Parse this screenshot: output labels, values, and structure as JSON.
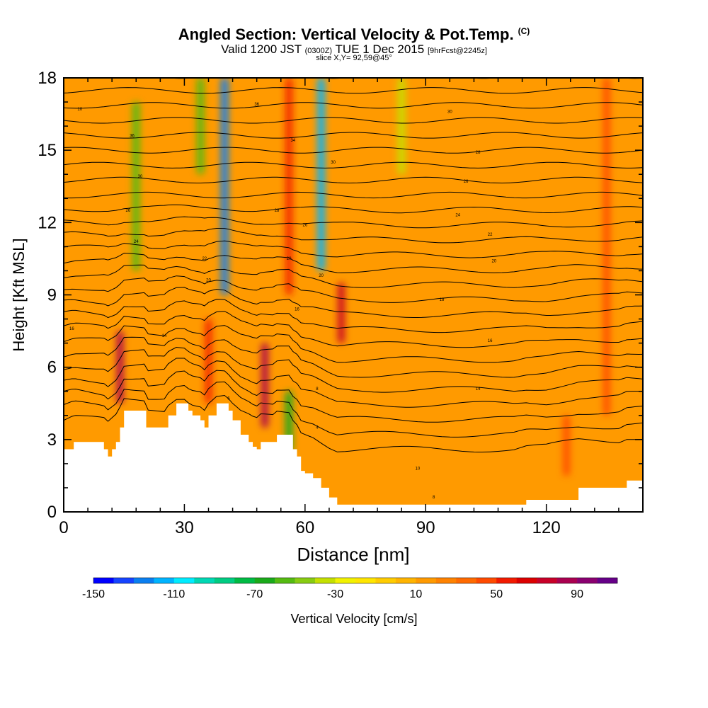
{
  "header": {
    "title": "Angled Section: Vertical Velocity & Pot.Temp.",
    "title_mark": "(C)",
    "valid_prefix": "Valid 1200 JST",
    "valid_utc": "(0300Z)",
    "valid_date": "TUE 1 Dec 2015",
    "forecast": "[9hrFcst@2245z]",
    "slice": "slice X,Y= 92,59@45°"
  },
  "chart_data": {
    "type": "heatmap",
    "xlabel": "Distance [nm]",
    "ylabel": "Height [Kft MSL]",
    "xlim": [
      0,
      144
    ],
    "ylim": [
      0,
      18
    ],
    "x_ticks": [
      0,
      30,
      60,
      90,
      120
    ],
    "y_ticks": [
      0,
      3,
      6,
      9,
      12,
      15,
      18
    ],
    "colorbar": {
      "label": "Vertical Velocity [cm/s]",
      "min": -150,
      "max": 110,
      "step": 10,
      "tick_labels": [
        -150,
        -110,
        -70,
        -30,
        10,
        50,
        90
      ],
      "colors": [
        "#0000ff",
        "#1644ff",
        "#0a7ff0",
        "#00b4ff",
        "#00ecff",
        "#00d8b4",
        "#00cc82",
        "#00bb44",
        "#1aaa1a",
        "#55bb11",
        "#88cc11",
        "#c4e000",
        "#f2f200",
        "#ffe600",
        "#ffcc00",
        "#ffb400",
        "#ff9a00",
        "#ff8200",
        "#ff6a00",
        "#ff4a00",
        "#f21a00",
        "#dc0000",
        "#c80028",
        "#aa0050",
        "#8a0070",
        "#660088"
      ]
    },
    "updraft_bands": [
      {
        "x": 14,
        "ymin": 4.5,
        "ymax": 7.5,
        "value": 85
      },
      {
        "x": 36,
        "ymin": 4.5,
        "ymax": 8.0,
        "value": 55
      },
      {
        "x": 50,
        "ymin": 3.5,
        "ymax": 7.0,
        "value": 80
      },
      {
        "x": 56,
        "ymin": 9.0,
        "ymax": 18.0,
        "value": 55
      },
      {
        "x": 69,
        "ymin": 7.0,
        "ymax": 9.5,
        "value": 75
      },
      {
        "x": 135,
        "ymin": 4.0,
        "ymax": 18.0,
        "value": 45
      },
      {
        "x": 125,
        "ymin": 1.5,
        "ymax": 4.0,
        "value": 40
      }
    ],
    "downdraft_bands": [
      {
        "x": 40,
        "ymin": 9.0,
        "ymax": 18.0,
        "value": -130
      },
      {
        "x": 64,
        "ymin": 10.0,
        "ymax": 18.0,
        "value": -120
      },
      {
        "x": 18,
        "ymin": 10.0,
        "ymax": 17.0,
        "value": -55
      },
      {
        "x": 34,
        "ymin": 14.0,
        "ymax": 18.0,
        "value": -55
      },
      {
        "x": 56,
        "ymin": 2.5,
        "ymax": 5.0,
        "value": -70
      },
      {
        "x": 84,
        "ymin": 14.0,
        "ymax": 18.0,
        "value": -40
      }
    ],
    "terrain": [
      [
        0,
        2.6
      ],
      [
        2.5,
        2.9
      ],
      [
        10,
        2.6
      ],
      [
        11,
        2.3
      ],
      [
        12,
        2.6
      ],
      [
        13,
        2.9
      ],
      [
        14,
        3.5
      ],
      [
        15,
        4.2
      ],
      [
        20,
        4.2
      ],
      [
        20.5,
        3.5
      ],
      [
        25,
        3.5
      ],
      [
        26,
        4.0
      ],
      [
        28,
        4.5
      ],
      [
        30,
        4.5
      ],
      [
        31,
        4.2
      ],
      [
        32,
        4.0
      ],
      [
        34,
        3.8
      ],
      [
        35,
        3.5
      ],
      [
        36,
        4.0
      ],
      [
        38,
        4.5
      ],
      [
        40,
        4.5
      ],
      [
        41,
        4.2
      ],
      [
        42,
        3.8
      ],
      [
        44,
        3.2
      ],
      [
        46,
        2.9
      ],
      [
        47,
        2.7
      ],
      [
        48,
        2.6
      ],
      [
        49,
        2.9
      ],
      [
        52,
        2.9
      ],
      [
        53,
        3.2
      ],
      [
        56,
        3.2
      ],
      [
        57,
        2.6
      ],
      [
        58,
        2.3
      ],
      [
        59,
        1.7
      ],
      [
        60,
        1.6
      ],
      [
        62,
        1.4
      ],
      [
        64,
        1.0
      ],
      [
        66,
        0.6
      ],
      [
        68,
        0.3
      ],
      [
        80,
        0.3
      ],
      [
        100,
        0.3
      ],
      [
        112,
        0.3
      ],
      [
        115,
        0.5
      ],
      [
        120,
        0.5
      ],
      [
        128,
        1.0
      ],
      [
        138,
        1.0
      ],
      [
        140,
        1.3
      ],
      [
        144,
        1.3
      ]
    ],
    "theta_contour_labels": [
      {
        "x": 4,
        "y": 16.7,
        "text": "10"
      },
      {
        "x": 17,
        "y": 15.6,
        "text": "36"
      },
      {
        "x": 19,
        "y": 13.9,
        "text": "30"
      },
      {
        "x": 16,
        "y": 12.5,
        "text": "26"
      },
      {
        "x": 18,
        "y": 11.2,
        "text": "24"
      },
      {
        "x": 48,
        "y": 16.9,
        "text": "36"
      },
      {
        "x": 57,
        "y": 15.4,
        "text": "34"
      },
      {
        "x": 67,
        "y": 14.5,
        "text": "30"
      },
      {
        "x": 53,
        "y": 12.5,
        "text": "28"
      },
      {
        "x": 60,
        "y": 11.9,
        "text": "26"
      },
      {
        "x": 35,
        "y": 10.5,
        "text": "22"
      },
      {
        "x": 36,
        "y": 9.6,
        "text": "20"
      },
      {
        "x": 56,
        "y": 10.5,
        "text": "20"
      },
      {
        "x": 64,
        "y": 9.8,
        "text": "20"
      },
      {
        "x": 58,
        "y": 8.4,
        "text": "16"
      },
      {
        "x": 2,
        "y": 7.6,
        "text": "16"
      },
      {
        "x": 25,
        "y": 7.3,
        "text": "14"
      },
      {
        "x": 41,
        "y": 4.7,
        "text": "6"
      },
      {
        "x": 63,
        "y": 5.1,
        "text": "8"
      },
      {
        "x": 63,
        "y": 3.5,
        "text": "4"
      },
      {
        "x": 96,
        "y": 16.6,
        "text": "30"
      },
      {
        "x": 103,
        "y": 14.9,
        "text": "28"
      },
      {
        "x": 100,
        "y": 13.7,
        "text": "26"
      },
      {
        "x": 98,
        "y": 12.3,
        "text": "24"
      },
      {
        "x": 106,
        "y": 11.5,
        "text": "22"
      },
      {
        "x": 107,
        "y": 10.4,
        "text": "20"
      },
      {
        "x": 94,
        "y": 8.8,
        "text": "18"
      },
      {
        "x": 106,
        "y": 7.1,
        "text": "16"
      },
      {
        "x": 103,
        "y": 5.1,
        "text": "14"
      },
      {
        "x": 88,
        "y": 1.8,
        "text": "10"
      },
      {
        "x": 92,
        "y": 0.6,
        "text": "8"
      }
    ]
  }
}
